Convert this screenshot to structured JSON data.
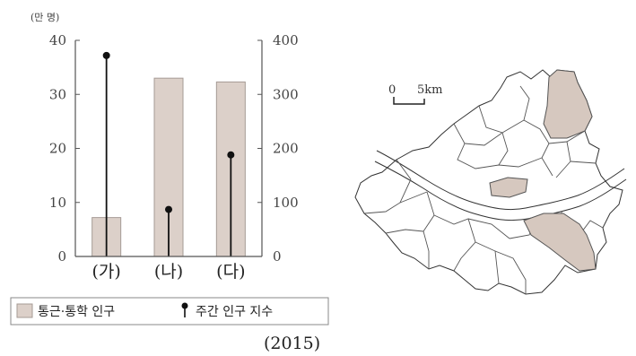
{
  "chart_data": {
    "type": "bar",
    "unit_label": "(만 명)",
    "categories": [
      "(가)",
      "(나)",
      "(다)"
    ],
    "left_axis": {
      "ylim": [
        0,
        40
      ],
      "ticks": [
        "0",
        "10",
        "20",
        "30",
        "40"
      ]
    },
    "right_axis": {
      "ylim": [
        0,
        400
      ],
      "ticks": [
        "0",
        "100",
        "200",
        "300",
        "400"
      ]
    },
    "series": [
      {
        "name": "통근·통학 인구",
        "kind": "bar",
        "axis": "left",
        "values": [
          7.2,
          33,
          32.3
        ]
      },
      {
        "name": "주간 인구 지수",
        "kind": "lollipop",
        "axis": "right",
        "values": [
          372,
          87,
          188
        ]
      }
    ],
    "legend": [
      "통근·통학 인구",
      "주간 인구 지수"
    ],
    "year": "(2015)",
    "colors": {
      "bar": "#dcd0c9",
      "bar_border": "#a69b95",
      "stem": "#111111"
    }
  },
  "map": {
    "scale_zero": "0",
    "scale_label": "5km",
    "highlight_color": "#d6c8bf"
  }
}
